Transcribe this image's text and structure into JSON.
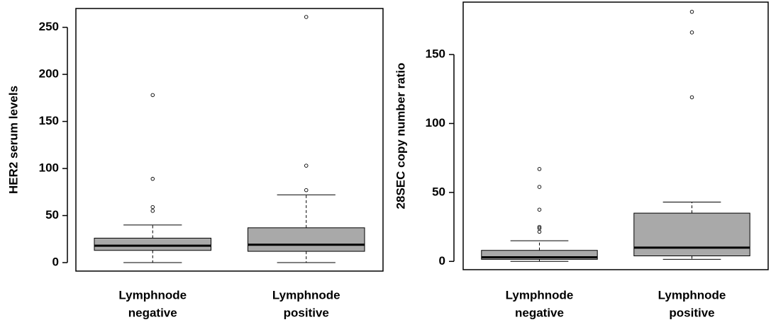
{
  "chart_data": [
    {
      "type": "box",
      "ylabel": "HER2 serum levels",
      "categories": [
        [
          "Lymphnode",
          "negative"
        ],
        [
          "Lymphnode",
          "positive"
        ]
      ],
      "color": "#a9a9a9",
      "ylim": [
        -9,
        270
      ],
      "yticks": [
        0,
        50,
        100,
        150,
        200,
        250
      ],
      "boxes": [
        {
          "whislo": 0,
          "q1": 13,
          "med": 18,
          "q3": 26,
          "whishi": 40,
          "outliers": [
            178,
            89,
            59,
            55
          ]
        },
        {
          "whislo": 0,
          "q1": 12,
          "med": 19,
          "q3": 37,
          "whishi": 72,
          "outliers": [
            261,
            103,
            77
          ]
        }
      ]
    },
    {
      "type": "box",
      "ylabel": "28SEC copy number ratio",
      "categories": [
        [
          "Lymphnode",
          "negative"
        ],
        [
          "Lymphnode",
          "positive"
        ]
      ],
      "color": "#a9a9a9",
      "ylim": [
        -6,
        188
      ],
      "yticks": [
        0,
        50,
        100,
        150
      ],
      "boxes": [
        {
          "whislo": 0,
          "q1": 1.5,
          "med": 3,
          "q3": 8,
          "whishi": 15,
          "outliers": [
            67,
            54,
            37.5,
            25,
            24,
            21.5
          ]
        },
        {
          "whislo": 1.5,
          "q1": 4,
          "med": 10,
          "q3": 35,
          "whishi": 43,
          "outliers": [
            181,
            166,
            119
          ]
        }
      ]
    }
  ]
}
